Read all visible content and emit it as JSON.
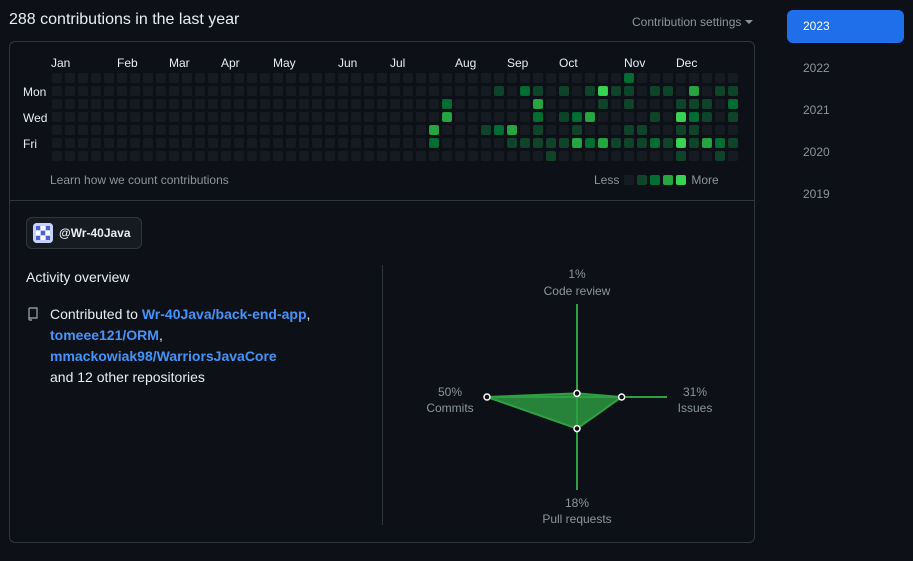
{
  "header": {
    "title": "288 contributions in the last year",
    "settings_label": "Contribution settings"
  },
  "calendar": {
    "months": [
      "Jan",
      "Feb",
      "Mar",
      "Apr",
      "May",
      "Jun",
      "Jul",
      "Aug",
      "Sep",
      "Oct",
      "Nov",
      "Dec"
    ],
    "weekdays": [
      "Mon",
      "Wed",
      "Fri"
    ],
    "learn_link": "Learn how we count contributions",
    "legend_less": "Less",
    "legend_more": "More",
    "level_colors": [
      "#161b22",
      "#0e4429",
      "#006d32",
      "#26a641",
      "#39d353"
    ],
    "weeks": 53,
    "active_cells": [
      [
        45,
        0,
        2
      ],
      [
        35,
        1,
        1
      ],
      [
        37,
        1,
        2
      ],
      [
        38,
        1,
        1
      ],
      [
        40,
        1,
        1
      ],
      [
        42,
        1,
        1
      ],
      [
        43,
        1,
        4
      ],
      [
        44,
        1,
        1
      ],
      [
        45,
        1,
        1
      ],
      [
        47,
        1,
        1
      ],
      [
        48,
        1,
        1
      ],
      [
        50,
        1,
        3
      ],
      [
        52,
        1,
        1
      ],
      [
        53,
        1,
        1
      ],
      [
        31,
        2,
        2
      ],
      [
        38,
        2,
        3
      ],
      [
        43,
        2,
        1
      ],
      [
        45,
        2,
        1
      ],
      [
        49,
        2,
        1
      ],
      [
        50,
        2,
        1
      ],
      [
        51,
        2,
        1
      ],
      [
        53,
        2,
        2
      ],
      [
        31,
        3,
        3
      ],
      [
        38,
        3,
        2
      ],
      [
        40,
        3,
        1
      ],
      [
        41,
        3,
        2
      ],
      [
        42,
        3,
        3
      ],
      [
        47,
        3,
        1
      ],
      [
        49,
        3,
        4
      ],
      [
        50,
        3,
        2
      ],
      [
        51,
        3,
        1
      ],
      [
        53,
        3,
        1
      ],
      [
        30,
        4,
        3
      ],
      [
        34,
        4,
        1
      ],
      [
        35,
        4,
        2
      ],
      [
        36,
        4,
        3
      ],
      [
        38,
        4,
        1
      ],
      [
        41,
        4,
        1
      ],
      [
        45,
        4,
        1
      ],
      [
        46,
        4,
        1
      ],
      [
        49,
        4,
        1
      ],
      [
        50,
        4,
        1
      ],
      [
        30,
        5,
        2
      ],
      [
        36,
        5,
        1
      ],
      [
        37,
        5,
        1
      ],
      [
        38,
        5,
        1
      ],
      [
        39,
        5,
        1
      ],
      [
        40,
        5,
        1
      ],
      [
        41,
        5,
        3
      ],
      [
        42,
        5,
        2
      ],
      [
        43,
        5,
        3
      ],
      [
        44,
        5,
        1
      ],
      [
        45,
        5,
        1
      ],
      [
        46,
        5,
        1
      ],
      [
        47,
        5,
        2
      ],
      [
        48,
        5,
        1
      ],
      [
        49,
        5,
        4
      ],
      [
        50,
        5,
        1
      ],
      [
        51,
        5,
        3
      ],
      [
        52,
        5,
        2
      ],
      [
        53,
        5,
        1
      ],
      [
        39,
        6,
        1
      ],
      [
        49,
        6,
        1
      ],
      [
        52,
        6,
        1
      ]
    ]
  },
  "organization": {
    "name": "@Wr-40Java"
  },
  "activity": {
    "title": "Activity overview",
    "contributed_to": "Contributed to",
    "repos": [
      "Wr-40Java/back-end-app",
      "tomeee121/ORM",
      "mmackowiak98/WarriorsJavaCore"
    ],
    "sep1": ",",
    "sep2": ",",
    "others": "and 12 other repositories"
  },
  "radar": {
    "code_review_pct": "1%",
    "code_review_label": "Code review",
    "issues_pct": "31%",
    "issues_label": "Issues",
    "pull_requests_pct": "18%",
    "pull_requests_label": "Pull requests",
    "commits_pct": "50%",
    "commits_label": "Commits",
    "values": {
      "code_review": 1,
      "issues": 31,
      "pull_requests": 18,
      "commits": 50
    },
    "color": "#2ea043"
  },
  "years": [
    "2023",
    "2022",
    "2021",
    "2020",
    "2019"
  ],
  "selected_year": "2023",
  "colors": {
    "background": "#0d1117",
    "border": "#30363d",
    "link": "#4493f8",
    "accent": "#1f6feb"
  }
}
